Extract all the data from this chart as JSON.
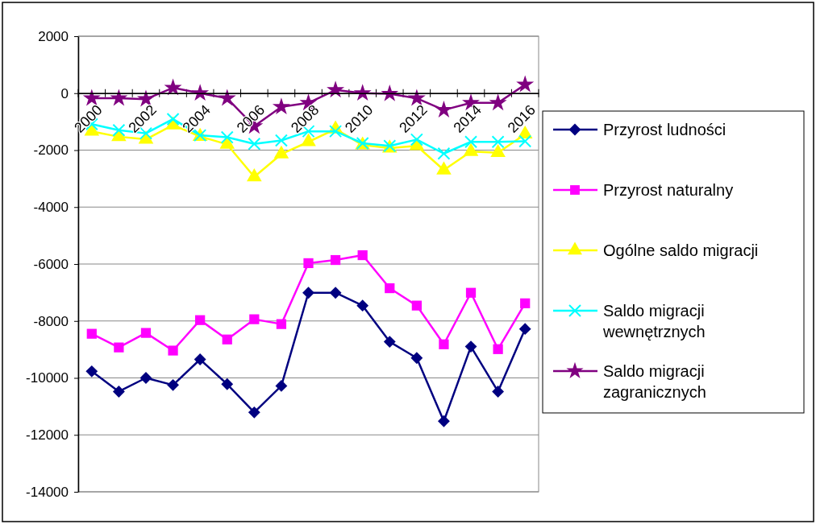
{
  "chart_data": {
    "type": "line",
    "categories": [
      "2000",
      null,
      "2002",
      null,
      "2004",
      null,
      "2006",
      null,
      "2008",
      null,
      "2010",
      null,
      "2012",
      null,
      "2014",
      null,
      "2016"
    ],
    "ylim": [
      -14000,
      2000
    ],
    "yticks": [
      -14000,
      -12000,
      -10000,
      -8000,
      -6000,
      -4000,
      -2000,
      0,
      2000
    ],
    "grid": "y",
    "legend": "right",
    "line_style": "solid",
    "series": [
      {
        "name": "Przyrost ludności",
        "color": "#000080",
        "marker": "diamond",
        "values": [
          -9770,
          -10480,
          -10000,
          -10250,
          -9350,
          -10220,
          -11210,
          -10280,
          -7010,
          -7010,
          -7460,
          -8730,
          -9300,
          -11520,
          -8900,
          -10480,
          -8280
        ]
      },
      {
        "name": "Przyrost naturalny",
        "color": "#ff00ff",
        "marker": "square",
        "values": [
          -8450,
          -8930,
          -8420,
          -9040,
          -7970,
          -8650,
          -7940,
          -8110,
          -5970,
          -5860,
          -5690,
          -6850,
          -7460,
          -8820,
          -7010,
          -8990,
          -7380
        ]
      },
      {
        "name": "Ogólne saldo migracji",
        "color": "#ffff00",
        "marker": "triangle",
        "values": [
          -1340,
          -1530,
          -1620,
          -1120,
          -1520,
          -1800,
          -2940,
          -2140,
          -1710,
          -1260,
          -1820,
          -1930,
          -1850,
          -2700,
          -2050,
          -2090,
          -1440
        ]
      },
      {
        "name": "Saldo migracji wewnętrznych",
        "color": "#00ffff",
        "marker": "cross",
        "values": [
          -1090,
          -1300,
          -1410,
          -910,
          -1480,
          -1550,
          -1780,
          -1660,
          -1340,
          -1340,
          -1760,
          -1850,
          -1630,
          -2120,
          -1710,
          -1710,
          -1690
        ]
      },
      {
        "name": "Saldo migracji zagranicznych",
        "color": "#800080",
        "marker": "star",
        "values": [
          -180,
          -180,
          -210,
          190,
          0,
          -180,
          -1160,
          -480,
          -340,
          110,
          0,
          -20,
          -180,
          -590,
          -340,
          -340,
          300
        ]
      }
    ]
  }
}
